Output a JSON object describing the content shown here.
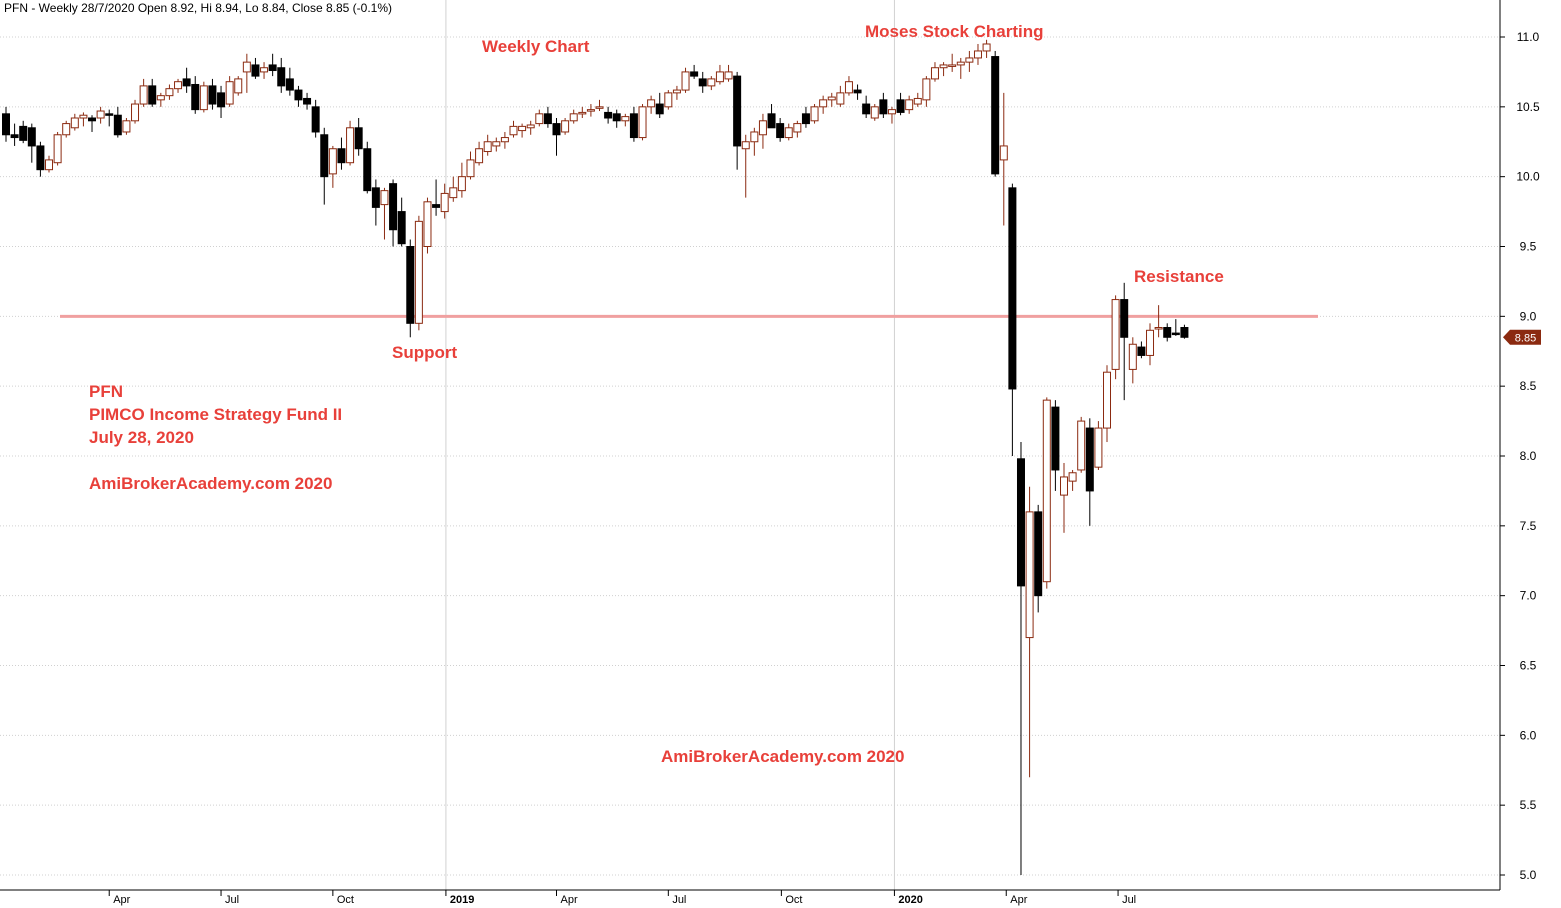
{
  "header": "PFN - Weekly 28/7/2020 Open 8.92, Hi 8.94, Lo 8.84, Close 8.85 (-0.1%)",
  "annotations": {
    "weekly": "Weekly Chart",
    "moses": "Moses Stock Charting",
    "support": "Support",
    "resistance": "Resistance",
    "watermark": "AmiBrokerAcademy.com  2020"
  },
  "info": {
    "ticker": "PFN",
    "name": "PIMCO Income Strategy Fund II",
    "date": "July 28, 2020",
    "site": "AmiBrokerAcademy.com  2020"
  },
  "colors": {
    "up": "#8b2a10",
    "down": "#000000",
    "level_line": "#f0a0a0",
    "annotation": "#e8403a",
    "price_tag": "#8b2a10",
    "grid": "#d0d0d0"
  },
  "chart_data": {
    "type": "candlestick",
    "timeframe": "weekly",
    "ylim": [
      4.95,
      11.25
    ],
    "yticks": [
      5.0,
      5.5,
      6.0,
      6.5,
      7.0,
      7.5,
      8.0,
      8.5,
      9.0,
      9.5,
      10.0,
      10.5,
      11.0
    ],
    "last_price": "8.85",
    "horizontal_level": 9.0,
    "x_labels": [
      {
        "label": "Apr",
        "date": "2018-04-02",
        "bold": false
      },
      {
        "label": "Jul",
        "date": "2018-07-02",
        "bold": false
      },
      {
        "label": "Oct",
        "date": "2018-10-01",
        "bold": false
      },
      {
        "label": "2019",
        "date": "2019-01-01",
        "bold": true
      },
      {
        "label": "Apr",
        "date": "2019-04-01",
        "bold": false
      },
      {
        "label": "Jul",
        "date": "2019-07-01",
        "bold": false
      },
      {
        "label": "Oct",
        "date": "2019-10-01",
        "bold": false
      },
      {
        "label": "2020",
        "date": "2020-01-01",
        "bold": true
      },
      {
        "label": "Apr",
        "date": "2020-04-01",
        "bold": false
      },
      {
        "label": "Jul",
        "date": "2020-07-01",
        "bold": false
      }
    ],
    "grid_x_dates": [
      "2019-01-01",
      "2020-01-01"
    ],
    "candles": [
      {
        "date": "2018-01-08",
        "o": 10.45,
        "h": 10.5,
        "l": 10.25,
        "c": 10.3
      },
      {
        "date": "2018-01-15",
        "o": 10.3,
        "h": 10.38,
        "l": 10.22,
        "c": 10.28
      },
      {
        "date": "2018-01-22",
        "o": 10.36,
        "h": 10.4,
        "l": 10.24,
        "c": 10.26
      },
      {
        "date": "2018-01-29",
        "o": 10.35,
        "h": 10.38,
        "l": 10.1,
        "c": 10.22
      },
      {
        "date": "2018-02-05",
        "o": 10.22,
        "h": 10.25,
        "l": 10.0,
        "c": 10.05
      },
      {
        "date": "2018-02-12",
        "o": 10.05,
        "h": 10.15,
        "l": 10.03,
        "c": 10.12
      },
      {
        "date": "2018-02-19",
        "o": 10.1,
        "h": 10.32,
        "l": 10.08,
        "c": 10.3
      },
      {
        "date": "2018-02-26",
        "o": 10.3,
        "h": 10.4,
        "l": 10.28,
        "c": 10.38
      },
      {
        "date": "2018-03-05",
        "o": 10.35,
        "h": 10.45,
        "l": 10.33,
        "c": 10.42
      },
      {
        "date": "2018-03-12",
        "o": 10.42,
        "h": 10.46,
        "l": 10.36,
        "c": 10.44
      },
      {
        "date": "2018-03-19",
        "o": 10.42,
        "h": 10.44,
        "l": 10.32,
        "c": 10.4
      },
      {
        "date": "2018-03-26",
        "o": 10.42,
        "h": 10.5,
        "l": 10.38,
        "c": 10.47
      },
      {
        "date": "2018-04-02",
        "o": 10.45,
        "h": 10.48,
        "l": 10.36,
        "c": 10.44
      },
      {
        "date": "2018-04-09",
        "o": 10.44,
        "h": 10.5,
        "l": 10.28,
        "c": 10.3
      },
      {
        "date": "2018-04-16",
        "o": 10.32,
        "h": 10.42,
        "l": 10.3,
        "c": 10.4
      },
      {
        "date": "2018-04-23",
        "o": 10.4,
        "h": 10.55,
        "l": 10.38,
        "c": 10.52
      },
      {
        "date": "2018-04-30",
        "o": 10.52,
        "h": 10.7,
        "l": 10.5,
        "c": 10.65
      },
      {
        "date": "2018-05-07",
        "o": 10.65,
        "h": 10.7,
        "l": 10.5,
        "c": 10.52
      },
      {
        "date": "2018-05-14",
        "o": 10.55,
        "h": 10.6,
        "l": 10.5,
        "c": 10.58
      },
      {
        "date": "2018-05-21",
        "o": 10.58,
        "h": 10.66,
        "l": 10.55,
        "c": 10.63
      },
      {
        "date": "2018-05-28",
        "o": 10.63,
        "h": 10.7,
        "l": 10.6,
        "c": 10.68
      },
      {
        "date": "2018-06-04",
        "o": 10.7,
        "h": 10.78,
        "l": 10.6,
        "c": 10.65
      },
      {
        "date": "2018-06-11",
        "o": 10.66,
        "h": 10.72,
        "l": 10.45,
        "c": 10.48
      },
      {
        "date": "2018-06-18",
        "o": 10.48,
        "h": 10.68,
        "l": 10.46,
        "c": 10.65
      },
      {
        "date": "2018-06-25",
        "o": 10.65,
        "h": 10.7,
        "l": 10.48,
        "c": 10.52
      },
      {
        "date": "2018-07-02",
        "o": 10.6,
        "h": 10.65,
        "l": 10.42,
        "c": 10.5
      },
      {
        "date": "2018-07-09",
        "o": 10.52,
        "h": 10.72,
        "l": 10.5,
        "c": 10.68
      },
      {
        "date": "2018-07-16",
        "o": 10.6,
        "h": 10.72,
        "l": 10.58,
        "c": 10.7
      },
      {
        "date": "2018-07-23",
        "o": 10.75,
        "h": 10.88,
        "l": 10.6,
        "c": 10.82
      },
      {
        "date": "2018-07-30",
        "o": 10.8,
        "h": 10.85,
        "l": 10.7,
        "c": 10.72
      },
      {
        "date": "2018-08-06",
        "o": 10.75,
        "h": 10.82,
        "l": 10.7,
        "c": 10.78
      },
      {
        "date": "2018-08-13",
        "o": 10.8,
        "h": 10.88,
        "l": 10.72,
        "c": 10.76
      },
      {
        "date": "2018-08-20",
        "o": 10.78,
        "h": 10.85,
        "l": 10.6,
        "c": 10.65
      },
      {
        "date": "2018-08-27",
        "o": 10.7,
        "h": 10.78,
        "l": 10.58,
        "c": 10.62
      },
      {
        "date": "2018-09-03",
        "o": 10.62,
        "h": 10.65,
        "l": 10.5,
        "c": 10.55
      },
      {
        "date": "2018-09-10",
        "o": 10.56,
        "h": 10.6,
        "l": 10.48,
        "c": 10.52
      },
      {
        "date": "2018-09-17",
        "o": 10.5,
        "h": 10.55,
        "l": 10.28,
        "c": 10.32
      },
      {
        "date": "2018-09-24",
        "o": 10.3,
        "h": 10.35,
        "l": 9.8,
        "c": 10.0
      },
      {
        "date": "2018-10-01",
        "o": 10.02,
        "h": 10.22,
        "l": 9.92,
        "c": 10.2
      },
      {
        "date": "2018-10-08",
        "o": 10.2,
        "h": 10.28,
        "l": 10.05,
        "c": 10.1
      },
      {
        "date": "2018-10-15",
        "o": 10.1,
        "h": 10.4,
        "l": 10.08,
        "c": 10.35
      },
      {
        "date": "2018-10-22",
        "o": 10.35,
        "h": 10.42,
        "l": 10.15,
        "c": 10.2
      },
      {
        "date": "2018-10-29",
        "o": 10.2,
        "h": 10.25,
        "l": 9.88,
        "c": 9.9
      },
      {
        "date": "2018-11-05",
        "o": 9.92,
        "h": 9.98,
        "l": 9.65,
        "c": 9.78
      },
      {
        "date": "2018-11-12",
        "o": 9.8,
        "h": 9.92,
        "l": 9.55,
        "c": 9.9
      },
      {
        "date": "2018-11-19",
        "o": 9.95,
        "h": 9.98,
        "l": 9.5,
        "c": 9.62
      },
      {
        "date": "2018-11-26",
        "o": 9.75,
        "h": 9.85,
        "l": 9.5,
        "c": 9.52
      },
      {
        "date": "2018-12-03",
        "o": 9.5,
        "h": 9.55,
        "l": 8.85,
        "c": 8.95
      },
      {
        "date": "2018-12-10",
        "o": 8.95,
        "h": 9.72,
        "l": 8.9,
        "c": 9.68
      },
      {
        "date": "2018-12-17",
        "o": 9.5,
        "h": 9.85,
        "l": 9.45,
        "c": 9.82
      },
      {
        "date": "2018-12-24",
        "o": 9.8,
        "h": 9.98,
        "l": 9.72,
        "c": 9.78
      },
      {
        "date": "2018-12-31",
        "o": 9.75,
        "h": 9.95,
        "l": 9.7,
        "c": 9.88
      },
      {
        "date": "2019-01-07",
        "o": 9.85,
        "h": 10.0,
        "l": 9.82,
        "c": 9.92
      },
      {
        "date": "2019-01-14",
        "o": 9.9,
        "h": 10.1,
        "l": 9.85,
        "c": 10.0
      },
      {
        "date": "2019-01-21",
        "o": 10.0,
        "h": 10.18,
        "l": 9.98,
        "c": 10.12
      },
      {
        "date": "2019-01-28",
        "o": 10.1,
        "h": 10.25,
        "l": 10.08,
        "c": 10.2
      },
      {
        "date": "2019-02-04",
        "o": 10.18,
        "h": 10.3,
        "l": 10.15,
        "c": 10.25
      },
      {
        "date": "2019-02-11",
        "o": 10.22,
        "h": 10.28,
        "l": 10.18,
        "c": 10.25
      },
      {
        "date": "2019-02-18",
        "o": 10.25,
        "h": 10.32,
        "l": 10.2,
        "c": 10.28
      },
      {
        "date": "2019-02-25",
        "o": 10.3,
        "h": 10.4,
        "l": 10.28,
        "c": 10.36
      },
      {
        "date": "2019-03-04",
        "o": 10.33,
        "h": 10.38,
        "l": 10.28,
        "c": 10.36
      },
      {
        "date": "2019-03-11",
        "o": 10.35,
        "h": 10.4,
        "l": 10.3,
        "c": 10.37
      },
      {
        "date": "2019-03-18",
        "o": 10.38,
        "h": 10.48,
        "l": 10.36,
        "c": 10.45
      },
      {
        "date": "2019-03-25",
        "o": 10.45,
        "h": 10.5,
        "l": 10.35,
        "c": 10.38
      },
      {
        "date": "2019-04-01",
        "o": 10.38,
        "h": 10.42,
        "l": 10.15,
        "c": 10.3
      },
      {
        "date": "2019-04-08",
        "o": 10.32,
        "h": 10.42,
        "l": 10.3,
        "c": 10.4
      },
      {
        "date": "2019-04-15",
        "o": 10.4,
        "h": 10.48,
        "l": 10.38,
        "c": 10.45
      },
      {
        "date": "2019-04-22",
        "o": 10.45,
        "h": 10.5,
        "l": 10.42,
        "c": 10.46
      },
      {
        "date": "2019-04-29",
        "o": 10.48,
        "h": 10.52,
        "l": 10.43,
        "c": 10.48
      },
      {
        "date": "2019-05-06",
        "o": 10.5,
        "h": 10.55,
        "l": 10.47,
        "c": 10.5
      },
      {
        "date": "2019-05-13",
        "o": 10.46,
        "h": 10.5,
        "l": 10.38,
        "c": 10.42
      },
      {
        "date": "2019-05-20",
        "o": 10.45,
        "h": 10.48,
        "l": 10.35,
        "c": 10.4
      },
      {
        "date": "2019-05-27",
        "o": 10.4,
        "h": 10.45,
        "l": 10.36,
        "c": 10.43
      },
      {
        "date": "2019-06-03",
        "o": 10.45,
        "h": 10.5,
        "l": 10.25,
        "c": 10.28
      },
      {
        "date": "2019-06-10",
        "o": 10.28,
        "h": 10.52,
        "l": 10.26,
        "c": 10.5
      },
      {
        "date": "2019-06-17",
        "o": 10.5,
        "h": 10.58,
        "l": 10.45,
        "c": 10.55
      },
      {
        "date": "2019-06-24",
        "o": 10.52,
        "h": 10.6,
        "l": 10.42,
        "c": 10.45
      },
      {
        "date": "2019-07-01",
        "o": 10.5,
        "h": 10.62,
        "l": 10.48,
        "c": 10.6
      },
      {
        "date": "2019-07-08",
        "o": 10.6,
        "h": 10.65,
        "l": 10.55,
        "c": 10.62
      },
      {
        "date": "2019-07-15",
        "o": 10.62,
        "h": 10.78,
        "l": 10.6,
        "c": 10.75
      },
      {
        "date": "2019-07-22",
        "o": 10.75,
        "h": 10.8,
        "l": 10.7,
        "c": 10.72
      },
      {
        "date": "2019-07-29",
        "o": 10.7,
        "h": 10.75,
        "l": 10.6,
        "c": 10.65
      },
      {
        "date": "2019-08-05",
        "o": 10.65,
        "h": 10.72,
        "l": 10.62,
        "c": 10.7
      },
      {
        "date": "2019-08-12",
        "o": 10.68,
        "h": 10.8,
        "l": 10.66,
        "c": 10.75
      },
      {
        "date": "2019-08-19",
        "o": 10.7,
        "h": 10.8,
        "l": 10.68,
        "c": 10.75
      },
      {
        "date": "2019-08-26",
        "o": 10.72,
        "h": 10.75,
        "l": 10.05,
        "c": 10.22
      },
      {
        "date": "2019-09-02",
        "o": 10.2,
        "h": 10.3,
        "l": 9.85,
        "c": 10.25
      },
      {
        "date": "2019-09-09",
        "o": 10.25,
        "h": 10.35,
        "l": 10.15,
        "c": 10.32
      },
      {
        "date": "2019-09-16",
        "o": 10.3,
        "h": 10.45,
        "l": 10.2,
        "c": 10.4
      },
      {
        "date": "2019-09-23",
        "o": 10.45,
        "h": 10.52,
        "l": 10.35,
        "c": 10.35
      },
      {
        "date": "2019-09-30",
        "o": 10.38,
        "h": 10.42,
        "l": 10.25,
        "c": 10.28
      },
      {
        "date": "2019-10-07",
        "o": 10.28,
        "h": 10.38,
        "l": 10.26,
        "c": 10.35
      },
      {
        "date": "2019-10-14",
        "o": 10.32,
        "h": 10.4,
        "l": 10.28,
        "c": 10.38
      },
      {
        "date": "2019-10-21",
        "o": 10.45,
        "h": 10.5,
        "l": 10.35,
        "c": 10.38
      },
      {
        "date": "2019-10-28",
        "o": 10.4,
        "h": 10.52,
        "l": 10.38,
        "c": 10.5
      },
      {
        "date": "2019-11-04",
        "o": 10.5,
        "h": 10.58,
        "l": 10.45,
        "c": 10.55
      },
      {
        "date": "2019-11-11",
        "o": 10.55,
        "h": 10.6,
        "l": 10.5,
        "c": 10.57
      },
      {
        "date": "2019-11-18",
        "o": 10.52,
        "h": 10.65,
        "l": 10.5,
        "c": 10.6
      },
      {
        "date": "2019-11-25",
        "o": 10.6,
        "h": 10.72,
        "l": 10.58,
        "c": 10.68
      },
      {
        "date": "2019-12-02",
        "o": 10.62,
        "h": 10.66,
        "l": 10.55,
        "c": 10.6
      },
      {
        "date": "2019-12-09",
        "o": 10.52,
        "h": 10.58,
        "l": 10.42,
        "c": 10.45
      },
      {
        "date": "2019-12-16",
        "o": 10.42,
        "h": 10.52,
        "l": 10.4,
        "c": 10.5
      },
      {
        "date": "2019-12-23",
        "o": 10.55,
        "h": 10.6,
        "l": 10.42,
        "c": 10.45
      },
      {
        "date": "2019-12-30",
        "o": 10.45,
        "h": 10.5,
        "l": 10.38,
        "c": 10.48
      },
      {
        "date": "2020-01-06",
        "o": 10.55,
        "h": 10.6,
        "l": 10.44,
        "c": 10.46
      },
      {
        "date": "2020-01-13",
        "o": 10.48,
        "h": 10.58,
        "l": 10.45,
        "c": 10.55
      },
      {
        "date": "2020-01-20",
        "o": 10.52,
        "h": 10.6,
        "l": 10.5,
        "c": 10.56
      },
      {
        "date": "2020-01-27",
        "o": 10.55,
        "h": 10.72,
        "l": 10.5,
        "c": 10.7
      },
      {
        "date": "2020-02-03",
        "o": 10.7,
        "h": 10.82,
        "l": 10.68,
        "c": 10.78
      },
      {
        "date": "2020-02-10",
        "o": 10.78,
        "h": 10.82,
        "l": 10.72,
        "c": 10.8
      },
      {
        "date": "2020-02-17",
        "o": 10.8,
        "h": 10.88,
        "l": 10.75,
        "c": 10.8
      },
      {
        "date": "2020-02-24",
        "o": 10.8,
        "h": 10.85,
        "l": 10.7,
        "c": 10.82
      },
      {
        "date": "2020-03-02",
        "o": 10.82,
        "h": 10.9,
        "l": 10.75,
        "c": 10.85
      },
      {
        "date": "2020-03-09",
        "o": 10.85,
        "h": 10.95,
        "l": 10.8,
        "c": 10.9
      },
      {
        "date": "2020-03-16",
        "o": 10.9,
        "h": 10.98,
        "l": 10.85,
        "c": 10.95
      },
      {
        "date": "2020-03-23",
        "o": 10.86,
        "h": 10.9,
        "l": 10.0,
        "c": 10.02
      },
      {
        "date": "2020-03-30",
        "o": 10.12,
        "h": 10.6,
        "l": 9.65,
        "c": 10.22
      },
      {
        "date": "2020-04-06",
        "o": 9.92,
        "h": 9.95,
        "l": 8.0,
        "c": 8.48
      },
      {
        "date": "2020-04-13",
        "o": 7.98,
        "h": 8.1,
        "l": 5.0,
        "c": 7.07
      },
      {
        "date": "2020-04-20",
        "o": 6.7,
        "h": 7.78,
        "l": 5.7,
        "c": 7.6
      },
      {
        "date": "2020-04-27",
        "o": 7.6,
        "h": 7.65,
        "l": 6.88,
        "c": 7.0
      },
      {
        "date": "2020-05-04",
        "o": 7.1,
        "h": 8.42,
        "l": 7.05,
        "c": 8.4
      },
      {
        "date": "2020-05-11",
        "o": 8.35,
        "h": 8.4,
        "l": 7.75,
        "c": 7.9
      },
      {
        "date": "2020-05-18",
        "o": 7.72,
        "h": 7.95,
        "l": 7.45,
        "c": 7.85
      },
      {
        "date": "2020-05-25",
        "o": 7.82,
        "h": 7.9,
        "l": 7.75,
        "c": 7.88
      },
      {
        "date": "2020-06-01",
        "o": 7.9,
        "h": 8.28,
        "l": 7.88,
        "c": 8.25
      },
      {
        "date": "2020-06-08",
        "o": 8.2,
        "h": 8.27,
        "l": 7.5,
        "c": 7.75
      },
      {
        "date": "2020-06-15",
        "o": 7.92,
        "h": 8.25,
        "l": 7.9,
        "c": 8.2
      },
      {
        "date": "2020-06-22",
        "o": 8.2,
        "h": 8.65,
        "l": 8.1,
        "c": 8.6
      },
      {
        "date": "2020-06-29",
        "o": 8.62,
        "h": 9.15,
        "l": 8.55,
        "c": 9.12
      },
      {
        "date": "2020-07-06",
        "o": 9.12,
        "h": 9.24,
        "l": 8.4,
        "c": 8.85
      },
      {
        "date": "2020-07-13",
        "o": 8.62,
        "h": 8.85,
        "l": 8.52,
        "c": 8.8
      },
      {
        "date": "2020-07-20",
        "o": 8.78,
        "h": 8.82,
        "l": 8.7,
        "c": 8.72
      },
      {
        "date": "2020-07-27",
        "o": 8.72,
        "h": 8.95,
        "l": 8.65,
        "c": 8.9
      },
      {
        "date": "2020-08-03",
        "o": 8.92,
        "h": 9.08,
        "l": 8.85,
        "c": 8.92
      },
      {
        "date": "2020-08-10",
        "o": 8.92,
        "h": 8.95,
        "l": 8.82,
        "c": 8.85
      },
      {
        "date": "2020-08-17",
        "o": 8.88,
        "h": 8.98,
        "l": 8.86,
        "c": 8.87
      },
      {
        "date": "2020-08-24",
        "o": 8.92,
        "h": 8.94,
        "l": 8.84,
        "c": 8.85
      }
    ]
  }
}
